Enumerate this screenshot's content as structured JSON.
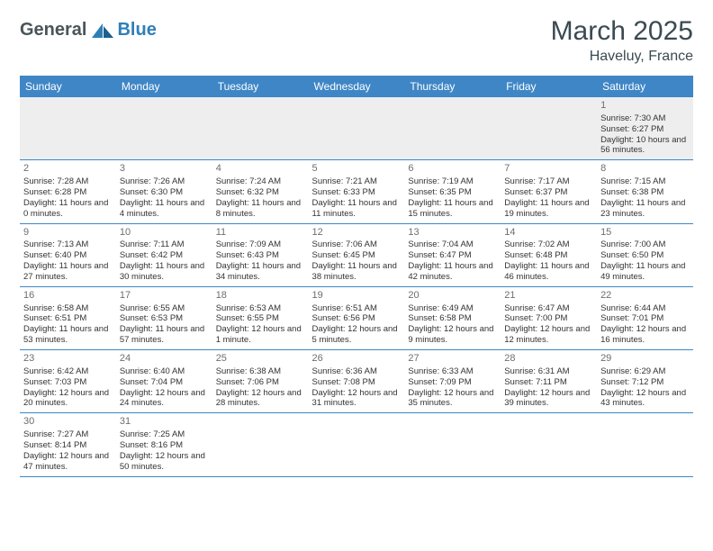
{
  "logo": {
    "general": "General",
    "blue": "Blue"
  },
  "title": "March 2025",
  "subtitle": "Haveluy, France",
  "colors": {
    "header_bg": "#3f86c6",
    "row_border": "#3f86c6",
    "logo_gray": "#4a5559",
    "logo_blue": "#2f7fb7",
    "title_color": "#3b4a52"
  },
  "day_headers": [
    "Sunday",
    "Monday",
    "Tuesday",
    "Wednesday",
    "Thursday",
    "Friday",
    "Saturday"
  ],
  "weeks": [
    [
      null,
      null,
      null,
      null,
      null,
      null,
      {
        "n": "1",
        "sr": "7:30 AM",
        "ss": "6:27 PM",
        "d": "10 hours and 56 minutes."
      }
    ],
    [
      {
        "n": "2",
        "sr": "7:28 AM",
        "ss": "6:28 PM",
        "d": "11 hours and 0 minutes."
      },
      {
        "n": "3",
        "sr": "7:26 AM",
        "ss": "6:30 PM",
        "d": "11 hours and 4 minutes."
      },
      {
        "n": "4",
        "sr": "7:24 AM",
        "ss": "6:32 PM",
        "d": "11 hours and 8 minutes."
      },
      {
        "n": "5",
        "sr": "7:21 AM",
        "ss": "6:33 PM",
        "d": "11 hours and 11 minutes."
      },
      {
        "n": "6",
        "sr": "7:19 AM",
        "ss": "6:35 PM",
        "d": "11 hours and 15 minutes."
      },
      {
        "n": "7",
        "sr": "7:17 AM",
        "ss": "6:37 PM",
        "d": "11 hours and 19 minutes."
      },
      {
        "n": "8",
        "sr": "7:15 AM",
        "ss": "6:38 PM",
        "d": "11 hours and 23 minutes."
      }
    ],
    [
      {
        "n": "9",
        "sr": "7:13 AM",
        "ss": "6:40 PM",
        "d": "11 hours and 27 minutes."
      },
      {
        "n": "10",
        "sr": "7:11 AM",
        "ss": "6:42 PM",
        "d": "11 hours and 30 minutes."
      },
      {
        "n": "11",
        "sr": "7:09 AM",
        "ss": "6:43 PM",
        "d": "11 hours and 34 minutes."
      },
      {
        "n": "12",
        "sr": "7:06 AM",
        "ss": "6:45 PM",
        "d": "11 hours and 38 minutes."
      },
      {
        "n": "13",
        "sr": "7:04 AM",
        "ss": "6:47 PM",
        "d": "11 hours and 42 minutes."
      },
      {
        "n": "14",
        "sr": "7:02 AM",
        "ss": "6:48 PM",
        "d": "11 hours and 46 minutes."
      },
      {
        "n": "15",
        "sr": "7:00 AM",
        "ss": "6:50 PM",
        "d": "11 hours and 49 minutes."
      }
    ],
    [
      {
        "n": "16",
        "sr": "6:58 AM",
        "ss": "6:51 PM",
        "d": "11 hours and 53 minutes."
      },
      {
        "n": "17",
        "sr": "6:55 AM",
        "ss": "6:53 PM",
        "d": "11 hours and 57 minutes."
      },
      {
        "n": "18",
        "sr": "6:53 AM",
        "ss": "6:55 PM",
        "d": "12 hours and 1 minute."
      },
      {
        "n": "19",
        "sr": "6:51 AM",
        "ss": "6:56 PM",
        "d": "12 hours and 5 minutes."
      },
      {
        "n": "20",
        "sr": "6:49 AM",
        "ss": "6:58 PM",
        "d": "12 hours and 9 minutes."
      },
      {
        "n": "21",
        "sr": "6:47 AM",
        "ss": "7:00 PM",
        "d": "12 hours and 12 minutes."
      },
      {
        "n": "22",
        "sr": "6:44 AM",
        "ss": "7:01 PM",
        "d": "12 hours and 16 minutes."
      }
    ],
    [
      {
        "n": "23",
        "sr": "6:42 AM",
        "ss": "7:03 PM",
        "d": "12 hours and 20 minutes."
      },
      {
        "n": "24",
        "sr": "6:40 AM",
        "ss": "7:04 PM",
        "d": "12 hours and 24 minutes."
      },
      {
        "n": "25",
        "sr": "6:38 AM",
        "ss": "7:06 PM",
        "d": "12 hours and 28 minutes."
      },
      {
        "n": "26",
        "sr": "6:36 AM",
        "ss": "7:08 PM",
        "d": "12 hours and 31 minutes."
      },
      {
        "n": "27",
        "sr": "6:33 AM",
        "ss": "7:09 PM",
        "d": "12 hours and 35 minutes."
      },
      {
        "n": "28",
        "sr": "6:31 AM",
        "ss": "7:11 PM",
        "d": "12 hours and 39 minutes."
      },
      {
        "n": "29",
        "sr": "6:29 AM",
        "ss": "7:12 PM",
        "d": "12 hours and 43 minutes."
      }
    ],
    [
      {
        "n": "30",
        "sr": "7:27 AM",
        "ss": "8:14 PM",
        "d": "12 hours and 47 minutes."
      },
      {
        "n": "31",
        "sr": "7:25 AM",
        "ss": "8:16 PM",
        "d": "12 hours and 50 minutes."
      },
      null,
      null,
      null,
      null,
      null
    ]
  ]
}
